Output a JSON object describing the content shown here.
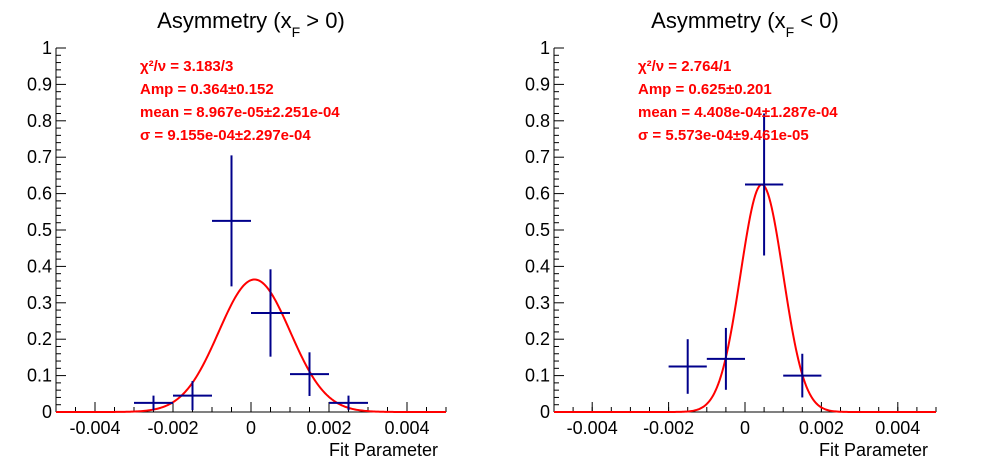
{
  "colors": {
    "data": "#00008b",
    "fit": "#ff0000",
    "stats": "#ff0000",
    "axis": "#000000"
  },
  "chart_data": [
    {
      "type": "scatter",
      "title_prefix": "Asymmetry (x",
      "title_sub": "F",
      "title_suffix": " > 0)",
      "xlabel": "Fit Parameter",
      "ylabel": "",
      "xlim": [
        -0.005,
        0.005
      ],
      "ylim": [
        0,
        1
      ],
      "x_ticks": [
        -0.004,
        -0.002,
        0,
        0.002,
        0.004
      ],
      "x_tick_labels": [
        "-0.004",
        "-0.002",
        "0",
        "0.002",
        "0.004"
      ],
      "y_ticks": [
        0,
        0.1,
        0.2,
        0.3,
        0.4,
        0.5,
        0.6,
        0.7,
        0.8,
        0.9,
        1
      ],
      "y_tick_labels": [
        "0",
        "0.1",
        "0.2",
        "0.3",
        "0.4",
        "0.5",
        "0.6",
        "0.7",
        "0.8",
        "0.9",
        "1"
      ],
      "grid": false,
      "stats": [
        "χ²/ν = 3.183/3",
        "Amp = 0.364±0.152",
        "mean = 8.967e-05±2.251e-04",
        "σ = 9.155e-04±2.297e-04"
      ],
      "points": [
        {
          "x": -0.0025,
          "y": 0.025,
          "xerr": 0.0005,
          "yerr": 0.02
        },
        {
          "x": -0.0015,
          "y": 0.045,
          "xerr": 0.0005,
          "yerr": 0.04
        },
        {
          "x": -0.0005,
          "y": 0.525,
          "xerr": 0.0005,
          "yerr": 0.18
        },
        {
          "x": 0.0005,
          "y": 0.272,
          "xerr": 0.0005,
          "yerr": 0.12
        },
        {
          "x": 0.0015,
          "y": 0.104,
          "xerr": 0.0005,
          "yerr": 0.06
        },
        {
          "x": 0.0025,
          "y": 0.025,
          "xerr": 0.0005,
          "yerr": 0.02
        }
      ],
      "fit": {
        "function": "gaussian",
        "amplitude": 0.364,
        "mean": 8.967e-05,
        "sigma": 0.0009155
      }
    },
    {
      "type": "scatter",
      "title_prefix": "Asymmetry (x",
      "title_sub": "F",
      "title_suffix": " < 0)",
      "xlabel": "Fit Parameter",
      "ylabel": "",
      "xlim": [
        -0.005,
        0.005
      ],
      "ylim": [
        0,
        1
      ],
      "x_ticks": [
        -0.004,
        -0.002,
        0,
        0.002,
        0.004
      ],
      "x_tick_labels": [
        "-0.004",
        "-0.002",
        "0",
        "0.002",
        "0.004"
      ],
      "y_ticks": [
        0,
        0.1,
        0.2,
        0.3,
        0.4,
        0.5,
        0.6,
        0.7,
        0.8,
        0.9,
        1
      ],
      "y_tick_labels": [
        "0",
        "0.1",
        "0.2",
        "0.3",
        "0.4",
        "0.5",
        "0.6",
        "0.7",
        "0.8",
        "0.9",
        "1"
      ],
      "grid": false,
      "stats": [
        "χ²/ν = 2.764/1",
        "Amp = 0.625±0.201",
        "mean = 4.408e-04±1.287e-04",
        "σ = 5.573e-04±9.461e-05"
      ],
      "points": [
        {
          "x": -0.0015,
          "y": 0.125,
          "xerr": 0.0005,
          "yerr": 0.075
        },
        {
          "x": -0.0005,
          "y": 0.146,
          "xerr": 0.0005,
          "yerr": 0.085
        },
        {
          "x": 0.0005,
          "y": 0.625,
          "xerr": 0.0005,
          "yerr": 0.195
        },
        {
          "x": 0.0015,
          "y": 0.1,
          "xerr": 0.0005,
          "yerr": 0.06
        }
      ],
      "fit": {
        "function": "gaussian",
        "amplitude": 0.625,
        "mean": 0.0004408,
        "sigma": 0.0005573
      }
    }
  ]
}
